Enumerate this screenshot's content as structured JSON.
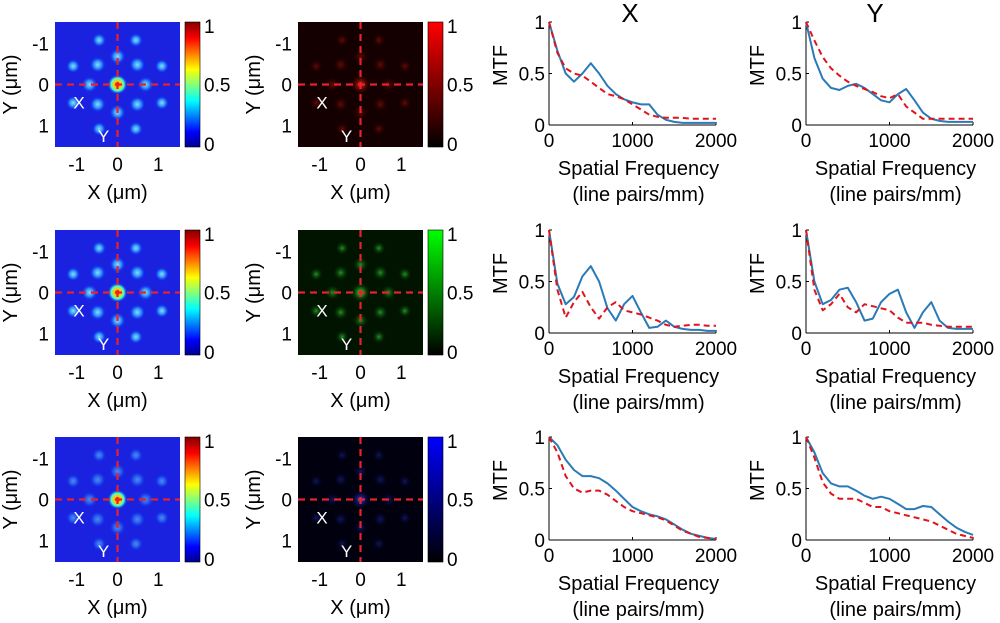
{
  "columns": {
    "x_title": "X",
    "y_title": "Y"
  },
  "psf_axes": {
    "xlabel": "X (μm)",
    "ylabel": "Y (μm)",
    "ticks": [
      "-1",
      "0",
      "1"
    ],
    "x_marker": "X",
    "y_marker": "Y",
    "colorbar_ticks": [
      "1",
      "0.5",
      "0"
    ]
  },
  "colors": {
    "solid_series": "#2a7ab8",
    "dashed_series": "#e0141c",
    "crosshair": "#e8212b",
    "row1_channel": "#ff0000",
    "row2_channel": "#00ff00",
    "row3_channel": "#0000ff"
  },
  "chart_data": [
    {
      "type": "line",
      "panel": "row1-X",
      "title": "X",
      "xlabel": [
        "Spatial Frequency",
        "(line pairs/mm)"
      ],
      "ylabel": "MTF",
      "xlim": [
        0,
        2000
      ],
      "ylim": [
        0,
        1
      ],
      "xticks": [
        "0",
        "1000",
        "2000"
      ],
      "yticks": [
        "0",
        "0.5",
        "1"
      ],
      "series": [
        {
          "style": "solid",
          "x": [
            0,
            100,
            200,
            300,
            400,
            500,
            600,
            700,
            800,
            900,
            1000,
            1100,
            1200,
            1300,
            1400,
            1500,
            1600,
            1700,
            1800,
            1900,
            2000
          ],
          "y": [
            1.0,
            0.72,
            0.5,
            0.42,
            0.5,
            0.6,
            0.5,
            0.38,
            0.3,
            0.25,
            0.22,
            0.2,
            0.2,
            0.1,
            0.05,
            0.03,
            0.02,
            0.02,
            0.02,
            0.02,
            0.02
          ]
        },
        {
          "style": "dashed",
          "x": [
            0,
            100,
            200,
            300,
            400,
            500,
            600,
            700,
            800,
            900,
            1000,
            1100,
            1200,
            1300,
            1400,
            1500,
            1600,
            1700,
            1800,
            1900,
            2000
          ],
          "y": [
            1.0,
            0.7,
            0.55,
            0.5,
            0.48,
            0.42,
            0.36,
            0.3,
            0.28,
            0.25,
            0.2,
            0.15,
            0.1,
            0.08,
            0.07,
            0.07,
            0.07,
            0.06,
            0.06,
            0.06,
            0.06
          ]
        }
      ]
    },
    {
      "type": "line",
      "panel": "row1-Y",
      "title": "Y",
      "xlabel": [
        "Spatial Frequency",
        "(line pairs/mm)"
      ],
      "ylabel": "MTF",
      "xlim": [
        0,
        2000
      ],
      "ylim": [
        0,
        1
      ],
      "xticks": [
        "0",
        "1000",
        "2000"
      ],
      "yticks": [
        "0",
        "0.5",
        "1"
      ],
      "series": [
        {
          "style": "solid",
          "x": [
            0,
            100,
            200,
            300,
            400,
            500,
            600,
            700,
            800,
            900,
            1000,
            1100,
            1200,
            1300,
            1400,
            1500,
            1600,
            1700,
            1800,
            1900,
            2000
          ],
          "y": [
            1.0,
            0.65,
            0.45,
            0.36,
            0.34,
            0.38,
            0.4,
            0.36,
            0.3,
            0.24,
            0.22,
            0.3,
            0.35,
            0.24,
            0.12,
            0.06,
            0.04,
            0.03,
            0.03,
            0.03,
            0.03
          ]
        },
        {
          "style": "dashed",
          "x": [
            0,
            100,
            200,
            300,
            400,
            500,
            600,
            700,
            800,
            900,
            1000,
            1100,
            1200,
            1300,
            1400,
            1500,
            1600,
            1700,
            1800,
            1900,
            2000
          ],
          "y": [
            1.0,
            0.82,
            0.66,
            0.55,
            0.48,
            0.42,
            0.38,
            0.35,
            0.32,
            0.28,
            0.26,
            0.3,
            0.18,
            0.12,
            0.06,
            0.06,
            0.06,
            0.06,
            0.06,
            0.06,
            0.06
          ]
        }
      ]
    },
    {
      "type": "line",
      "panel": "row2-X",
      "title": "",
      "xlabel": [
        "Spatial Frequency",
        "(line pairs/mm)"
      ],
      "ylabel": "MTF",
      "xlim": [
        0,
        2000
      ],
      "ylim": [
        0,
        1
      ],
      "xticks": [
        "0",
        "1000",
        "2000"
      ],
      "yticks": [
        "0",
        "0.5",
        "1"
      ],
      "series": [
        {
          "style": "solid",
          "x": [
            0,
            100,
            200,
            300,
            400,
            500,
            600,
            700,
            800,
            900,
            1000,
            1100,
            1200,
            1300,
            1400,
            1500,
            1600,
            1700,
            1800,
            1900,
            2000
          ],
          "y": [
            1.0,
            0.48,
            0.28,
            0.35,
            0.55,
            0.65,
            0.5,
            0.24,
            0.12,
            0.28,
            0.36,
            0.2,
            0.05,
            0.06,
            0.12,
            0.06,
            0.04,
            0.03,
            0.03,
            0.02,
            0.02
          ]
        },
        {
          "style": "dashed",
          "x": [
            0,
            100,
            200,
            300,
            400,
            500,
            600,
            700,
            800,
            900,
            1000,
            1100,
            1200,
            1300,
            1400,
            1500,
            1600,
            1700,
            1800,
            1900,
            2000
          ],
          "y": [
            1.0,
            0.42,
            0.15,
            0.3,
            0.4,
            0.25,
            0.14,
            0.25,
            0.3,
            0.22,
            0.2,
            0.18,
            0.15,
            0.12,
            0.08,
            0.06,
            0.07,
            0.08,
            0.08,
            0.07,
            0.07
          ]
        }
      ]
    },
    {
      "type": "line",
      "panel": "row2-Y",
      "title": "",
      "xlabel": [
        "Spatial Frequency",
        "(line pairs/mm)"
      ],
      "ylabel": "MTF",
      "xlim": [
        0,
        2000
      ],
      "ylim": [
        0,
        1
      ],
      "xticks": [
        "0",
        "1000",
        "2000"
      ],
      "yticks": [
        "0",
        "0.5",
        "1"
      ],
      "series": [
        {
          "style": "solid",
          "x": [
            0,
            100,
            200,
            300,
            400,
            500,
            600,
            700,
            800,
            900,
            1000,
            1100,
            1200,
            1300,
            1400,
            1500,
            1600,
            1700,
            1800,
            1900,
            2000
          ],
          "y": [
            1.0,
            0.5,
            0.28,
            0.32,
            0.42,
            0.44,
            0.3,
            0.12,
            0.14,
            0.3,
            0.38,
            0.42,
            0.2,
            0.05,
            0.2,
            0.3,
            0.12,
            0.05,
            0.04,
            0.04,
            0.04
          ]
        },
        {
          "style": "dashed",
          "x": [
            0,
            100,
            200,
            300,
            400,
            500,
            600,
            700,
            800,
            900,
            1000,
            1100,
            1200,
            1300,
            1400,
            1500,
            1600,
            1700,
            1800,
            1900,
            2000
          ],
          "y": [
            1.0,
            0.42,
            0.22,
            0.28,
            0.38,
            0.25,
            0.2,
            0.28,
            0.26,
            0.24,
            0.22,
            0.15,
            0.1,
            0.1,
            0.1,
            0.08,
            0.07,
            0.06,
            0.06,
            0.06,
            0.06
          ]
        }
      ]
    },
    {
      "type": "line",
      "panel": "row3-X",
      "title": "",
      "xlabel": [
        "Spatial Frequency",
        "(line pairs/mm)"
      ],
      "ylabel": "MTF",
      "xlim": [
        0,
        2000
      ],
      "ylim": [
        0,
        1
      ],
      "xticks": [
        "0",
        "1000",
        "2000"
      ],
      "yticks": [
        "0",
        "0.5",
        "1"
      ],
      "series": [
        {
          "style": "solid",
          "x": [
            0,
            100,
            200,
            300,
            400,
            500,
            600,
            700,
            800,
            900,
            1000,
            1100,
            1200,
            1300,
            1400,
            1500,
            1600,
            1700,
            1800,
            1900,
            2000
          ],
          "y": [
            1.0,
            0.92,
            0.78,
            0.68,
            0.62,
            0.62,
            0.6,
            0.55,
            0.48,
            0.4,
            0.32,
            0.28,
            0.25,
            0.23,
            0.2,
            0.15,
            0.1,
            0.06,
            0.04,
            0.02,
            0.01
          ]
        },
        {
          "style": "dashed",
          "x": [
            0,
            100,
            200,
            300,
            400,
            500,
            600,
            700,
            800,
            900,
            1000,
            1100,
            1200,
            1300,
            1400,
            1500,
            1600,
            1700,
            1800,
            1900,
            2000
          ],
          "y": [
            1.0,
            0.85,
            0.62,
            0.5,
            0.46,
            0.48,
            0.48,
            0.44,
            0.38,
            0.32,
            0.28,
            0.26,
            0.24,
            0.22,
            0.19,
            0.14,
            0.09,
            0.06,
            0.03,
            0.02,
            0.01
          ]
        }
      ]
    },
    {
      "type": "line",
      "panel": "row3-Y",
      "title": "",
      "xlabel": [
        "Spatial Frequency",
        "(line pairs/mm)"
      ],
      "ylabel": "MTF",
      "xlim": [
        0,
        2000
      ],
      "ylim": [
        0,
        1
      ],
      "xticks": [
        "0",
        "1000",
        "2000"
      ],
      "yticks": [
        "0",
        "0.5",
        "1"
      ],
      "series": [
        {
          "style": "solid",
          "x": [
            0,
            100,
            200,
            300,
            400,
            500,
            600,
            700,
            800,
            900,
            1000,
            1100,
            1200,
            1300,
            1400,
            1500,
            1600,
            1700,
            1800,
            1900,
            2000
          ],
          "y": [
            1.0,
            0.85,
            0.65,
            0.55,
            0.52,
            0.52,
            0.48,
            0.43,
            0.4,
            0.42,
            0.4,
            0.35,
            0.3,
            0.3,
            0.33,
            0.32,
            0.25,
            0.18,
            0.12,
            0.08,
            0.05
          ]
        },
        {
          "style": "dashed",
          "x": [
            0,
            100,
            200,
            300,
            400,
            500,
            600,
            700,
            800,
            900,
            1000,
            1100,
            1200,
            1300,
            1400,
            1500,
            1600,
            1700,
            1800,
            1900,
            2000
          ],
          "y": [
            1.0,
            0.8,
            0.56,
            0.45,
            0.4,
            0.4,
            0.4,
            0.36,
            0.32,
            0.32,
            0.28,
            0.26,
            0.24,
            0.22,
            0.2,
            0.18,
            0.14,
            0.1,
            0.06,
            0.04,
            0.02
          ]
        }
      ]
    }
  ]
}
